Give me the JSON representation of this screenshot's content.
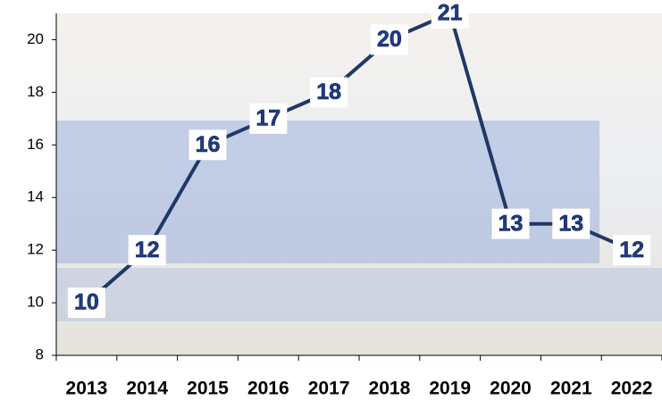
{
  "chart_data": {
    "type": "line",
    "categories": [
      "2013",
      "2014",
      "2015",
      "2016",
      "2017",
      "2018",
      "2019",
      "2020",
      "2021",
      "2022"
    ],
    "values": [
      10,
      12,
      16,
      17,
      18,
      20,
      21,
      13,
      13,
      12
    ],
    "color": "#1f3864",
    "ylim": [
      8,
      21
    ],
    "yticks": [
      8,
      10,
      12,
      14,
      16,
      18,
      20
    ]
  }
}
